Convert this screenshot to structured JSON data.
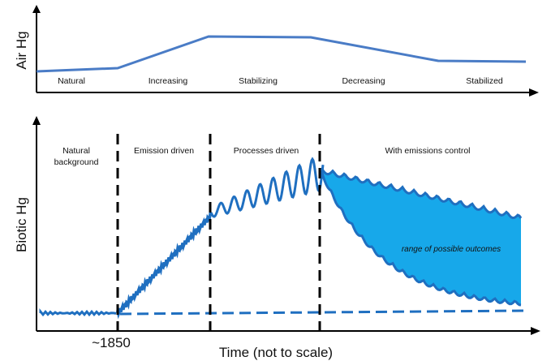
{
  "top_panel": {
    "y_label": "Air Hg",
    "phases": [
      "Natural",
      "Increasing",
      "Stabilizing",
      "Decreasing",
      "Stabilized"
    ],
    "line_color": "#4a7cc6"
  },
  "bottom_panel": {
    "y_label": "Biotic Hg",
    "phases": [
      {
        "lines": [
          "Natural",
          "background"
        ]
      },
      {
        "lines": [
          "Emission driven"
        ]
      },
      {
        "lines": [
          "Processes driven"
        ]
      },
      {
        "lines": [
          "With emissions control"
        ]
      }
    ],
    "x_tick": "~1850",
    "x_label": "Time (not to scale)",
    "outcome_label": "range of possible outcomes",
    "line_color": "#1f6fc0",
    "fill_color": "#17a8ea"
  }
}
